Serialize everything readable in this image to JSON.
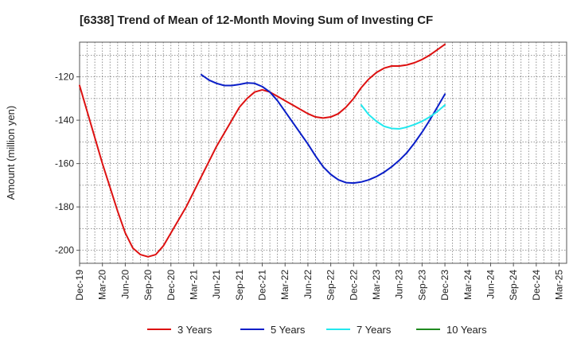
{
  "chart_data": {
    "type": "line",
    "title": "[6338]  Trend of Mean of 12-Month Moving Sum of Investing CF",
    "xlabel": "",
    "ylabel": "Amount (million yen)",
    "ylim": [
      -206,
      -104
    ],
    "yticks": [
      -200,
      -180,
      -160,
      -140,
      -120
    ],
    "x_tick_labels": [
      "Dec-19",
      "Mar-20",
      "Jun-20",
      "Sep-20",
      "Dec-20",
      "Mar-21",
      "Jun-21",
      "Sep-21",
      "Dec-21",
      "Mar-22",
      "Jun-22",
      "Sep-22",
      "Dec-22",
      "Mar-23",
      "Jun-23",
      "Sep-23",
      "Dec-23",
      "Mar-24",
      "Jun-24",
      "Sep-24",
      "Dec-24",
      "Mar-25"
    ],
    "grid": true,
    "legend_position": "bottom",
    "series": [
      {
        "name": "3 Years",
        "color": "#dd1111",
        "points": [
          [
            0,
            -124
          ],
          [
            1,
            -136
          ],
          [
            2,
            -148
          ],
          [
            3,
            -160
          ],
          [
            4,
            -171
          ],
          [
            5,
            -182
          ],
          [
            6,
            -192
          ],
          [
            7,
            -199
          ],
          [
            8,
            -202
          ],
          [
            9,
            -203
          ],
          [
            10,
            -202
          ],
          [
            11,
            -198
          ],
          [
            12,
            -192
          ],
          [
            13,
            -186
          ],
          [
            14,
            -180
          ],
          [
            15,
            -173
          ],
          [
            16,
            -166
          ],
          [
            17,
            -159
          ],
          [
            18,
            -152
          ],
          [
            19,
            -146
          ],
          [
            20,
            -140
          ],
          [
            21,
            -134
          ],
          [
            22,
            -130
          ],
          [
            23,
            -127
          ],
          [
            24,
            -126
          ],
          [
            25,
            -127
          ],
          [
            26,
            -129
          ],
          [
            27,
            -131
          ],
          [
            28,
            -133
          ],
          [
            29,
            -135
          ],
          [
            30,
            -137
          ],
          [
            31,
            -138.5
          ],
          [
            32,
            -139
          ],
          [
            33,
            -138.5
          ],
          [
            34,
            -137
          ],
          [
            35,
            -134
          ],
          [
            36,
            -130
          ],
          [
            37,
            -125
          ],
          [
            38,
            -121
          ],
          [
            39,
            -118
          ],
          [
            40,
            -116
          ],
          [
            41,
            -115
          ],
          [
            42,
            -115
          ],
          [
            43,
            -114.5
          ],
          [
            44,
            -113.5
          ],
          [
            45,
            -112
          ],
          [
            46,
            -110
          ],
          [
            47,
            -107.5
          ],
          [
            48,
            -105
          ]
        ]
      },
      {
        "name": "5 Years",
        "color": "#0a1ec8",
        "points": [
          [
            16,
            -119
          ],
          [
            17,
            -121.5
          ],
          [
            18,
            -123
          ],
          [
            19,
            -124
          ],
          [
            20,
            -124
          ],
          [
            21,
            -123.5
          ],
          [
            22,
            -122.8
          ],
          [
            23,
            -123
          ],
          [
            24,
            -124.5
          ],
          [
            25,
            -127
          ],
          [
            26,
            -131
          ],
          [
            27,
            -136
          ],
          [
            28,
            -141
          ],
          [
            29,
            -146
          ],
          [
            30,
            -151
          ],
          [
            31,
            -156.5
          ],
          [
            32,
            -161.5
          ],
          [
            33,
            -165
          ],
          [
            34,
            -167.5
          ],
          [
            35,
            -168.8
          ],
          [
            36,
            -169
          ],
          [
            37,
            -168.5
          ],
          [
            38,
            -167.5
          ],
          [
            39,
            -166
          ],
          [
            40,
            -164
          ],
          [
            41,
            -161.5
          ],
          [
            42,
            -158.5
          ],
          [
            43,
            -155
          ],
          [
            44,
            -150.5
          ],
          [
            45,
            -145.5
          ],
          [
            46,
            -140
          ],
          [
            47,
            -134
          ],
          [
            48,
            -128
          ]
        ]
      },
      {
        "name": "7 Years",
        "color": "#22e8ee",
        "points": [
          [
            37,
            -133
          ],
          [
            38,
            -137.5
          ],
          [
            39,
            -140.5
          ],
          [
            40,
            -142.8
          ],
          [
            41,
            -143.8
          ],
          [
            42,
            -144
          ],
          [
            43,
            -143.2
          ],
          [
            44,
            -142
          ],
          [
            45,
            -140.5
          ],
          [
            46,
            -138.5
          ],
          [
            47,
            -136
          ],
          [
            48,
            -133
          ]
        ]
      },
      {
        "name": "10 Years",
        "color": "#1f8a1f",
        "points": []
      }
    ]
  }
}
